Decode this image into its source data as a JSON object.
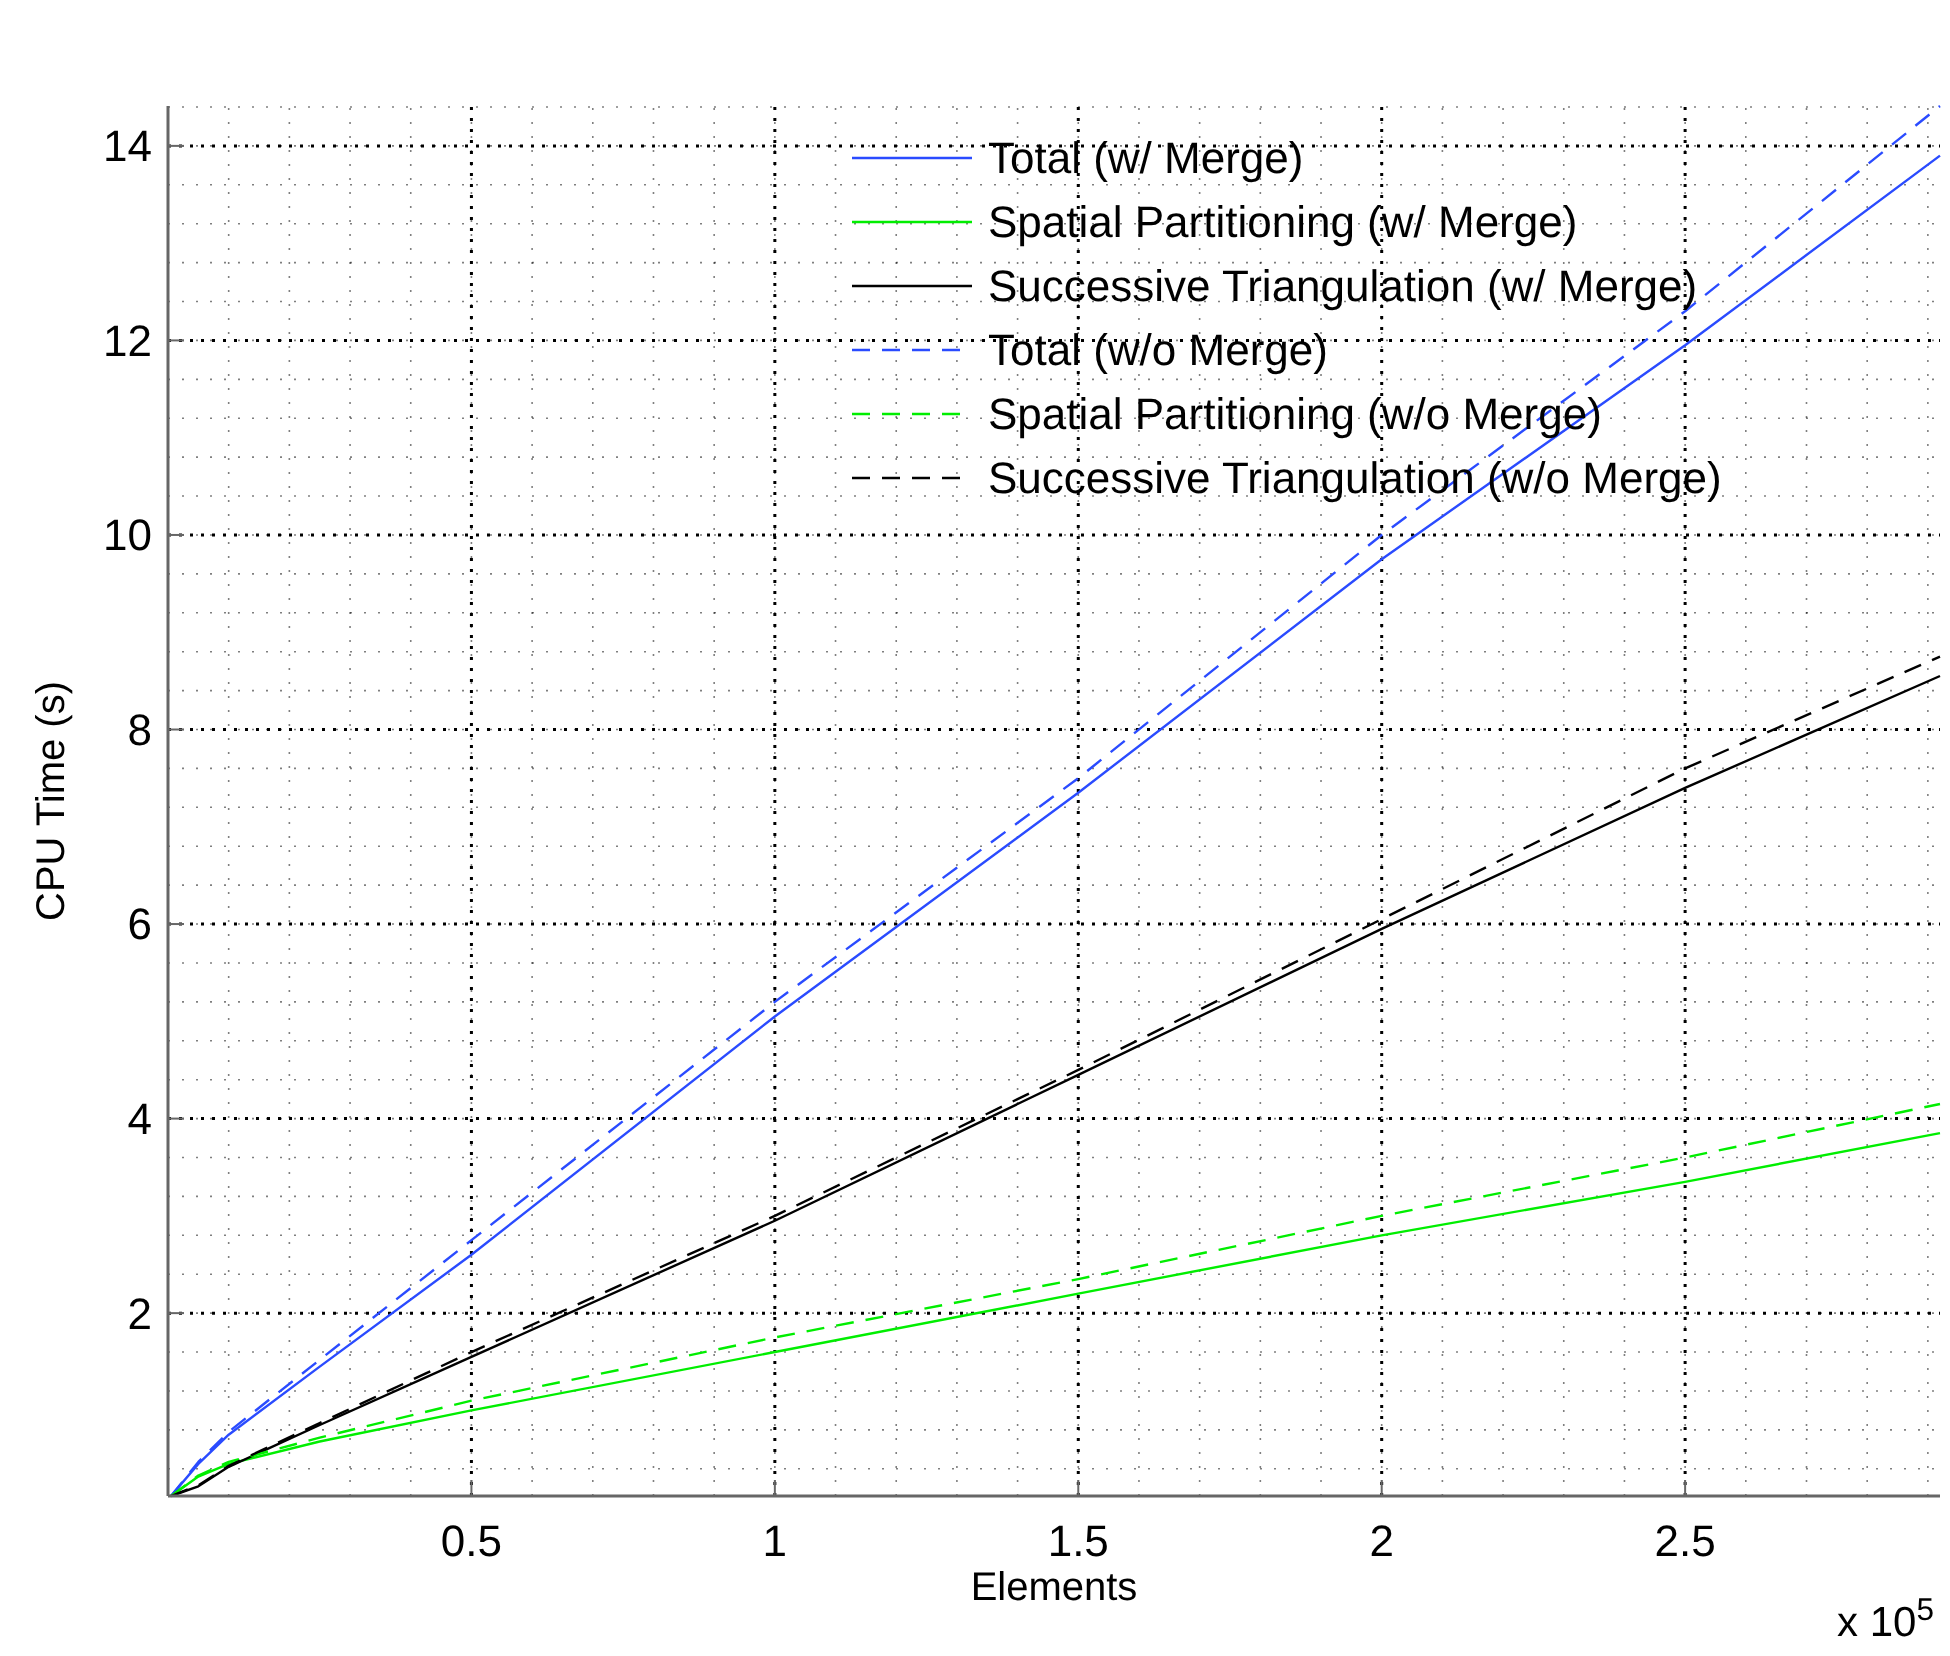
{
  "chart_data": {
    "type": "line",
    "xlabel": "Elements",
    "ylabel": "CPU Time (s)",
    "annotations": [
      "x 10$^{5}$"
    ],
    "xlim": [
      0,
      2.92
    ],
    "ylim": [
      0.12,
      14.41
    ],
    "xticks": [
      0.5,
      1,
      1.5,
      2,
      2.5
    ],
    "yticks": [
      2,
      4,
      6,
      8,
      10,
      12,
      14
    ],
    "grid": true,
    "legend": "top right",
    "series": [
      {
        "name": "Total (w/ Merge)",
        "color": "#2a4bff",
        "line_style": "solid",
        "x": [
          0.005,
          0.05,
          0.1,
          0.25,
          0.5,
          1,
          1.5,
          2,
          2.5,
          2.92
        ],
        "values": [
          0.12,
          0.45,
          0.75,
          1.45,
          2.6,
          5.05,
          7.35,
          9.75,
          11.95,
          13.9
        ]
      },
      {
        "name": "Spatial Partitioning (w/ Merge)",
        "color": "#00ee00",
        "line_style": "solid",
        "x": [
          0.005,
          0.05,
          0.1,
          0.25,
          0.5,
          1,
          1.5,
          2,
          2.5,
          2.92
        ],
        "values": [
          0.12,
          0.32,
          0.45,
          0.68,
          1.0,
          1.6,
          2.2,
          2.8,
          3.35,
          3.85
        ]
      },
      {
        "name": "Successive Triangulation (w/ Merge)",
        "color": "#000000",
        "line_style": "solid",
        "x": [
          0.005,
          0.05,
          0.1,
          0.25,
          0.5,
          1,
          1.5,
          2,
          2.5,
          2.92
        ],
        "values": [
          0.12,
          0.22,
          0.42,
          0.85,
          1.55,
          2.95,
          4.45,
          5.95,
          7.4,
          8.55
        ]
      },
      {
        "name": "Total (w/o Merge)",
        "color": "#2a4bff",
        "line_style": "dashed",
        "x": [
          0.005,
          0.05,
          0.1,
          0.25,
          0.5,
          1,
          1.5,
          2,
          2.5,
          2.92
        ],
        "values": [
          0.12,
          0.47,
          0.78,
          1.52,
          2.75,
          5.2,
          7.5,
          10.0,
          12.3,
          14.41
        ]
      },
      {
        "name": "Spatial Partitioning (w/o Merge)",
        "color": "#00ee00",
        "line_style": "dashed",
        "x": [
          0.005,
          0.05,
          0.1,
          0.25,
          0.5,
          1,
          1.5,
          2,
          2.5,
          2.92
        ],
        "values": [
          0.12,
          0.33,
          0.47,
          0.72,
          1.1,
          1.75,
          2.35,
          3.0,
          3.6,
          4.15
        ]
      },
      {
        "name": "Successive Triangulation (w/o Merge)",
        "color": "#000000",
        "line_style": "dashed",
        "x": [
          0.005,
          0.05,
          0.1,
          0.25,
          0.5,
          1,
          1.5,
          2,
          2.5,
          2.92
        ],
        "values": [
          0.12,
          0.23,
          0.43,
          0.87,
          1.6,
          3.0,
          4.5,
          6.05,
          7.6,
          8.75
        ]
      }
    ]
  }
}
